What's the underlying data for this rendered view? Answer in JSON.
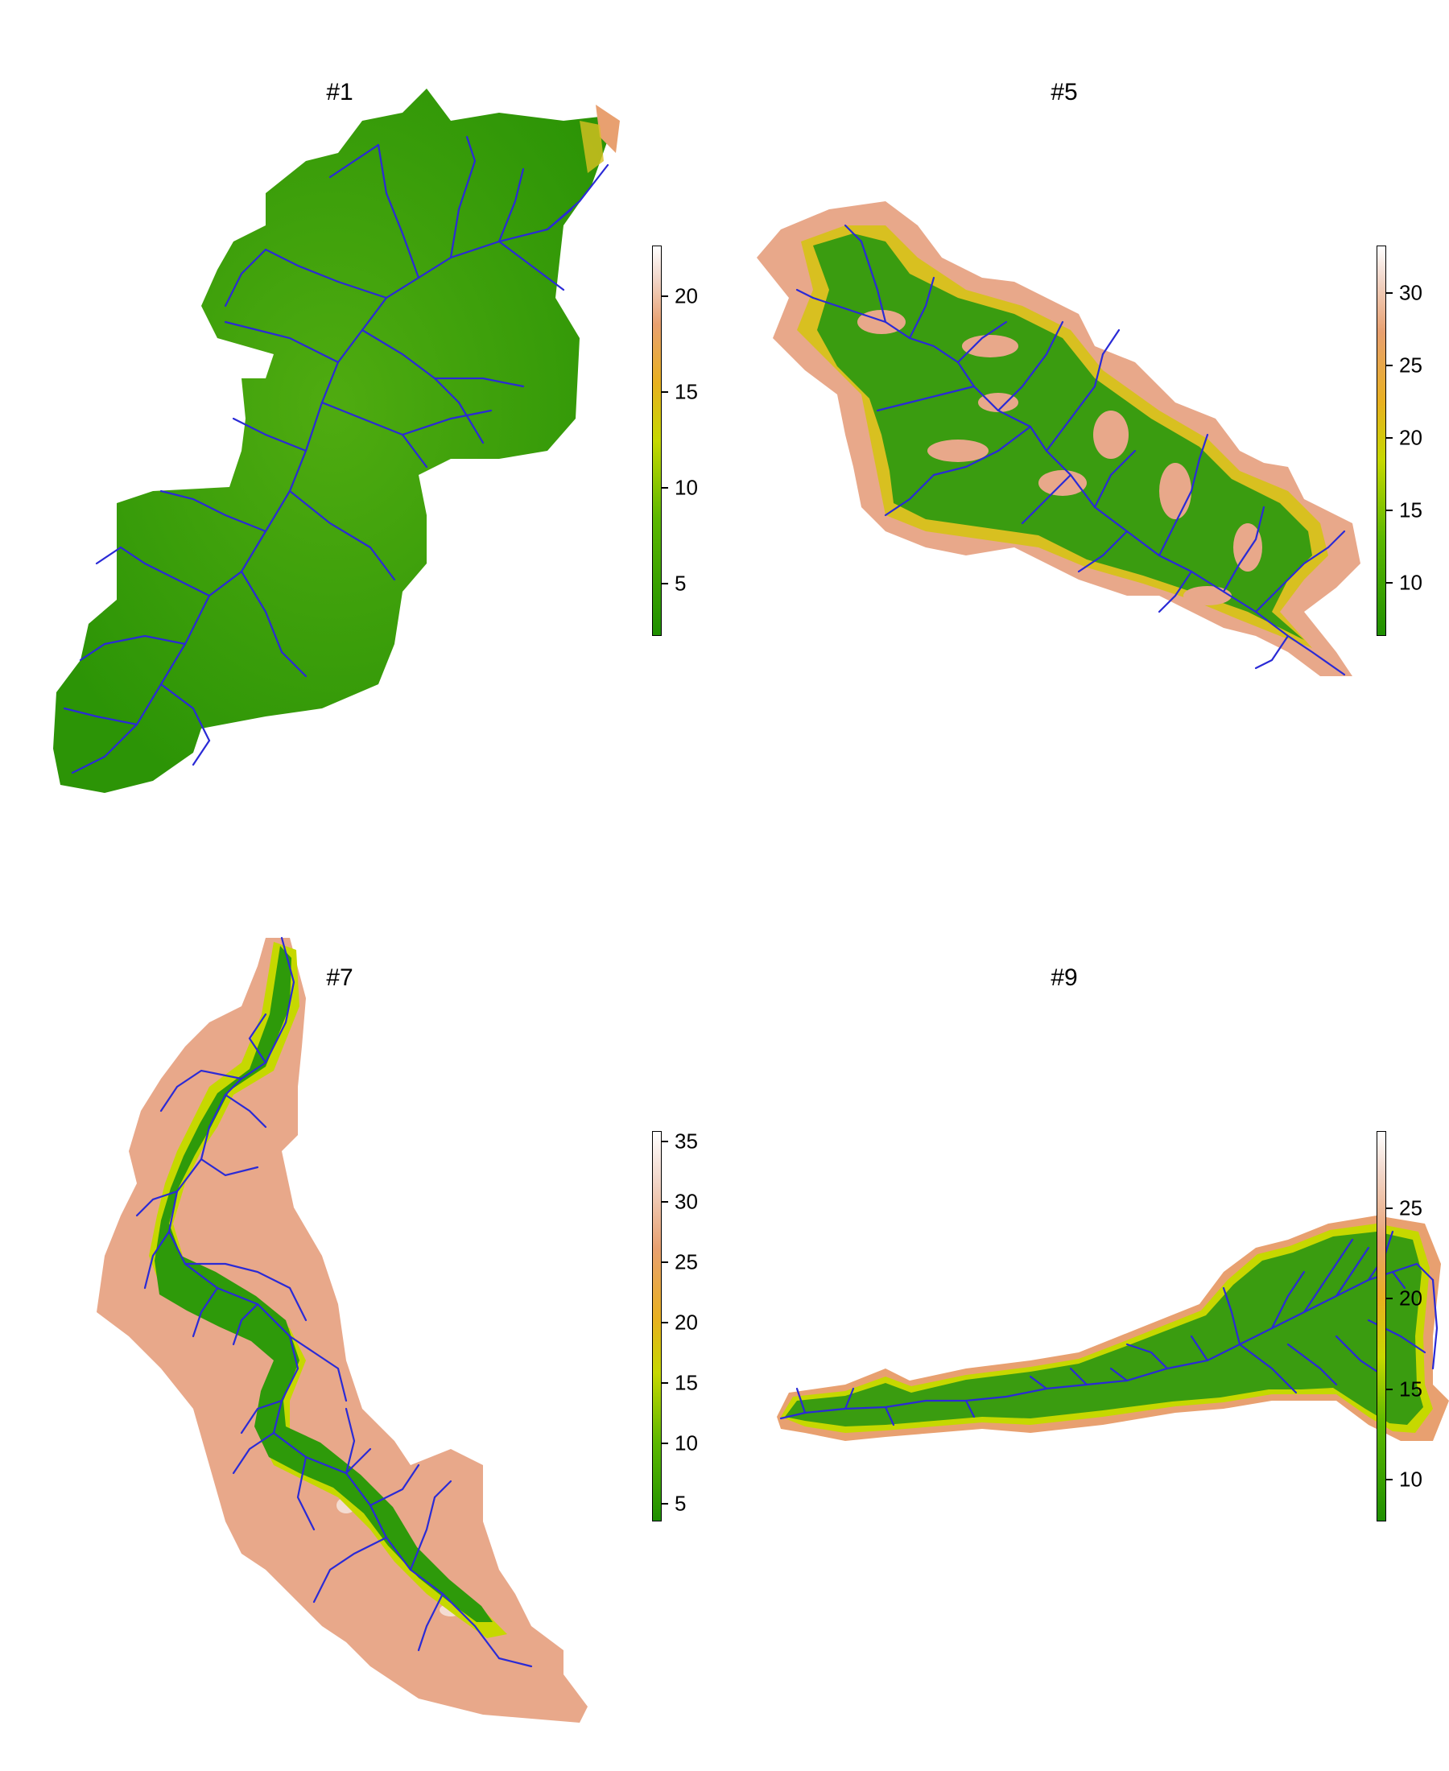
{
  "panels": [
    {
      "id": "p1",
      "title": "#1",
      "legend": {
        "min": 2.5,
        "max": 22.5,
        "ticks": [
          5,
          10,
          15,
          20
        ]
      }
    },
    {
      "id": "p5",
      "title": "#5",
      "legend": {
        "min": 6.5,
        "max": 33,
        "ticks": [
          10,
          15,
          20,
          25,
          30
        ]
      }
    },
    {
      "id": "p7",
      "title": "#7",
      "legend": {
        "min": 3.5,
        "max": 35.5,
        "ticks": [
          5,
          10,
          15,
          20,
          25,
          30,
          35
        ]
      }
    },
    {
      "id": "p9",
      "title": "#9",
      "legend": {
        "min": 7.5,
        "max": 29,
        "ticks": [
          10,
          15,
          20,
          25
        ]
      }
    }
  ],
  "colors": {
    "ramp": [
      "#1f8f00",
      "#5cb800",
      "#c6d800",
      "#e8b020",
      "#e8a070",
      "#f2d8cc",
      "#ffffff"
    ],
    "stream": "#2a2ad6",
    "terrain_low": "#2e9a0a",
    "terrain_mid": "#d8c020",
    "terrain_high": "#e8a88a"
  }
}
